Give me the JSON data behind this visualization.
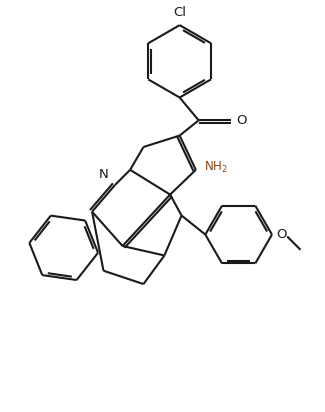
{
  "bg": "#ffffff",
  "lc": "#1a1a1a",
  "nh2c": "#8B4513",
  "lw": 1.5,
  "figsize": [
    3.25,
    4.12
  ],
  "dpi": 100,
  "xlim": [
    -1.7,
    1.7
  ],
  "ylim": [
    -2.1,
    2.1
  ],
  "dbo": 0.028
}
